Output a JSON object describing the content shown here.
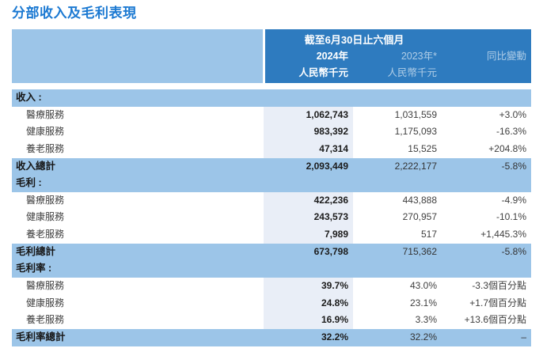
{
  "page_title": "分部收入及毛利表現",
  "colors": {
    "title_blue": "#1b79d2",
    "header_dark_blue": "#2e7bbf",
    "band_light_blue": "#9cc5e8",
    "column_2024_band": "#e9eef7"
  },
  "table": {
    "header": {
      "period_title": "截至6月30日止六個月",
      "col_2024": {
        "year": "2024年",
        "unit": "人民幣千元"
      },
      "col_2023": {
        "year": "2023年*",
        "unit": "人民幣千元"
      },
      "col_change": {
        "label": "同比變動"
      }
    },
    "sections": [
      {
        "title": "收入 :",
        "rows": [
          {
            "label": "醫療服務",
            "v2024": "1,062,743",
            "v2023": "1,031,559",
            "change": "+3.0%"
          },
          {
            "label": "健康服務",
            "v2024": "983,392",
            "v2023": "1,175,093",
            "change": "-16.3%"
          },
          {
            "label": "養老服務",
            "v2024": "47,314",
            "v2023": "15,525",
            "change": "+204.8%"
          }
        ],
        "total": {
          "label": "收入總計",
          "v2024": "2,093,449",
          "v2023": "2,222,177",
          "change": "-5.8%"
        }
      },
      {
        "title": "毛利 :",
        "rows": [
          {
            "label": "醫療服務",
            "v2024": "422,236",
            "v2023": "443,888",
            "change": "-4.9%"
          },
          {
            "label": "健康服務",
            "v2024": "243,573",
            "v2023": "270,957",
            "change": "-10.1%"
          },
          {
            "label": "養老服務",
            "v2024": "7,989",
            "v2023": "517",
            "change": "+1,445.3%"
          }
        ],
        "total": {
          "label": "毛利總計",
          "v2024": "673,798",
          "v2023": "715,362",
          "change": "-5.8%"
        }
      },
      {
        "title": "毛利率 :",
        "rows": [
          {
            "label": "醫療服務",
            "v2024": "39.7%",
            "v2023": "43.0%",
            "change": "-3.3個百分點"
          },
          {
            "label": "健康服務",
            "v2024": "24.8%",
            "v2023": "23.1%",
            "change": "+1.7個百分點"
          },
          {
            "label": "養老服務",
            "v2024": "16.9%",
            "v2023": "3.3%",
            "change": "+13.6個百分點"
          }
        ],
        "total": {
          "label": "毛利率總計",
          "v2024": "32.2%",
          "v2023": "32.2%",
          "change": "–"
        }
      }
    ]
  }
}
